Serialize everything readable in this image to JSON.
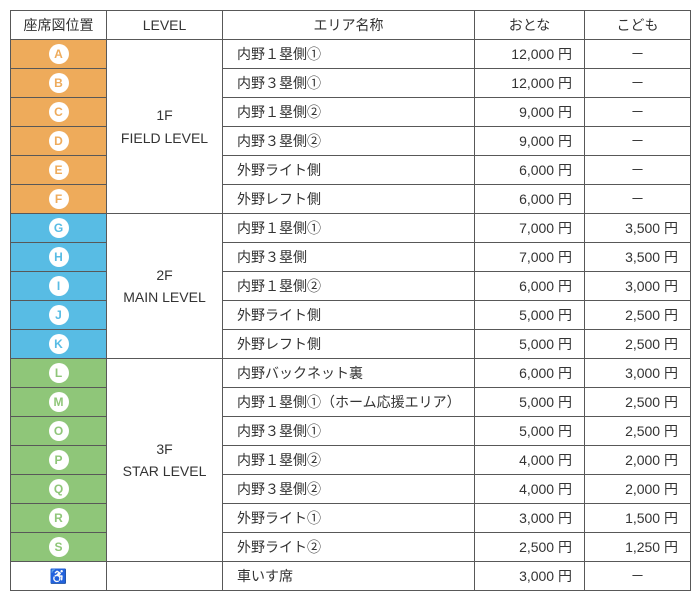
{
  "headers": {
    "pos": "座席図位置",
    "level": "LEVEL",
    "area": "エリア名称",
    "adult": "おとな",
    "child": "こども"
  },
  "colors": {
    "level1_bg": "#eeab5b",
    "level1_badge_text": "#eeab5b",
    "level2_bg": "#58bce4",
    "level2_badge_text": "#58bce4",
    "level3_bg": "#8fc679",
    "level3_badge_text": "#8fc679",
    "badge_bg": "#ffffff",
    "border": "#585858",
    "text": "#333333"
  },
  "levels": [
    {
      "id": "1f",
      "line1": "1F",
      "line2": "FIELD LEVEL",
      "bg": "#eeab5b",
      "badge_text": "#eeab5b",
      "rows": [
        {
          "letter": "A",
          "area": "内野１塁側①",
          "adult": "12,000 円",
          "child": "－"
        },
        {
          "letter": "B",
          "area": "内野３塁側①",
          "adult": "12,000 円",
          "child": "－"
        },
        {
          "letter": "C",
          "area": "内野１塁側②",
          "adult": "9,000 円",
          "child": "－"
        },
        {
          "letter": "D",
          "area": "内野３塁側②",
          "adult": "9,000 円",
          "child": "－"
        },
        {
          "letter": "E",
          "area": "外野ライト側",
          "adult": "6,000 円",
          "child": "－"
        },
        {
          "letter": "F",
          "area": "外野レフト側",
          "adult": "6,000 円",
          "child": "－"
        }
      ]
    },
    {
      "id": "2f",
      "line1": "2F",
      "line2": "MAIN LEVEL",
      "bg": "#58bce4",
      "badge_text": "#58bce4",
      "rows": [
        {
          "letter": "G",
          "area": "内野１塁側①",
          "adult": "7,000 円",
          "child": "3,500 円"
        },
        {
          "letter": "H",
          "area": "内野３塁側",
          "adult": "7,000 円",
          "child": "3,500 円"
        },
        {
          "letter": "I",
          "area": "内野１塁側②",
          "adult": "6,000 円",
          "child": "3,000 円"
        },
        {
          "letter": "J",
          "area": "外野ライト側",
          "adult": "5,000 円",
          "child": "2,500 円"
        },
        {
          "letter": "K",
          "area": "外野レフト側",
          "adult": "5,000 円",
          "child": "2,500 円"
        }
      ]
    },
    {
      "id": "3f",
      "line1": "3F",
      "line2": "STAR LEVEL",
      "bg": "#8fc679",
      "badge_text": "#8fc679",
      "rows": [
        {
          "letter": "L",
          "area": "内野バックネット裏",
          "adult": "6,000 円",
          "child": "3,000 円"
        },
        {
          "letter": "M",
          "area": "内野１塁側①（ホーム応援エリア）",
          "adult": "5,000 円",
          "child": "2,500 円"
        },
        {
          "letter": "O",
          "area": "内野３塁側①",
          "adult": "5,000 円",
          "child": "2,500 円"
        },
        {
          "letter": "P",
          "area": "内野１塁側②",
          "adult": "4,000 円",
          "child": "2,000 円"
        },
        {
          "letter": "Q",
          "area": "内野３塁側②",
          "adult": "4,000 円",
          "child": "2,000 円"
        },
        {
          "letter": "R",
          "area": "外野ライト①",
          "adult": "3,000 円",
          "child": "1,500 円"
        },
        {
          "letter": "S",
          "area": "外野ライト②",
          "adult": "2,500 円",
          "child": "1,250 円"
        }
      ]
    }
  ],
  "wheelchair_row": {
    "icon": "♿",
    "area": "車いす席",
    "adult": "3,000 円",
    "child": "－"
  }
}
